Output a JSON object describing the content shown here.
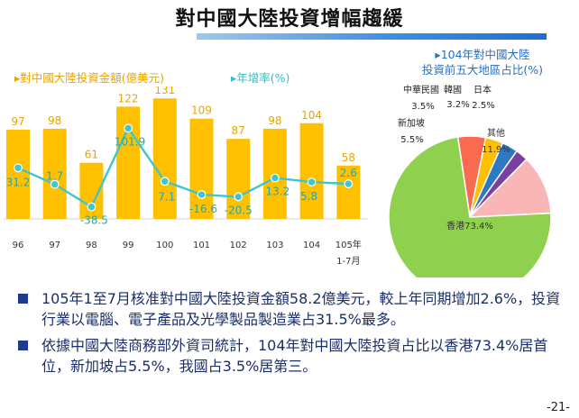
{
  "title": "對中國大陸投資增幅趨緩",
  "chart_data": [
    {
      "type": "bar",
      "legend": [
        "▸對中國大陸投資金額(億美元)",
        "▸年增率(%)"
      ],
      "categories": [
        "96",
        "97",
        "98",
        "99",
        "100",
        "101",
        "102",
        "103",
        "104",
        "105年\n1-7月"
      ],
      "series": [
        {
          "name": "對中國大陸投資金額(億美元)",
          "type": "bar",
          "color": "#ffc000",
          "values": [
            97,
            98,
            61,
            122,
            131,
            109,
            87,
            98,
            104,
            58
          ]
        },
        {
          "name": "年增率(%)",
          "type": "line",
          "color": "#3fc5cf",
          "values": [
            31.2,
            1.7,
            -38.5,
            101.9,
            7.1,
            -16.6,
            -20.5,
            13.2,
            5.8,
            2.6
          ]
        }
      ],
      "bar_labels": [
        "97",
        "98",
        "61",
        "122",
        "131",
        "109",
        "87",
        "98",
        "104",
        "58"
      ],
      "line_labels": [
        "31.2",
        "1.7",
        "-38.5",
        "101.9",
        "7.1",
        "-16.6",
        "-20.5",
        "13.2",
        "5.8",
        "2.6"
      ],
      "bar_range": [
        0,
        140
      ],
      "line_range": [
        -60,
        170
      ]
    },
    {
      "type": "pie",
      "title_lines": [
        "▸104年對中國大陸",
        "投資前五大地區占比(%)"
      ],
      "slices": [
        {
          "label": "香港",
          "value": 73.4,
          "text": "香港73.4%",
          "color": "#8fd14f"
        },
        {
          "label": "新加坡",
          "value": 5.5,
          "text": "5.5%",
          "color": "#f86b4f"
        },
        {
          "label": "中華民國",
          "value": 3.5,
          "text": "3.5%",
          "color": "#ffc000"
        },
        {
          "label": "韓國",
          "value": 3.2,
          "text": "3.2%",
          "color": "#2f78c4"
        },
        {
          "label": "日本",
          "value": 2.5,
          "text": "2.5%",
          "color": "#7b3fa0"
        },
        {
          "label": "其他",
          "value": 11.9,
          "text": "11.9%",
          "color": "#f8b6b6"
        }
      ]
    }
  ],
  "bullets": [
    "105年1至7月核准對中國大陸投資金額58.2億美元，較上年同期增加2.6%，投資行業以電腦、電子產品及光學製品製造業占31.5%最多。",
    "依據中國大陸商務部外資司統計，104年對中國大陸投資占比以香港73.4%居首位，新加坡占5.5%，我國占3.5%居第三。"
  ],
  "page_number": "-21-"
}
